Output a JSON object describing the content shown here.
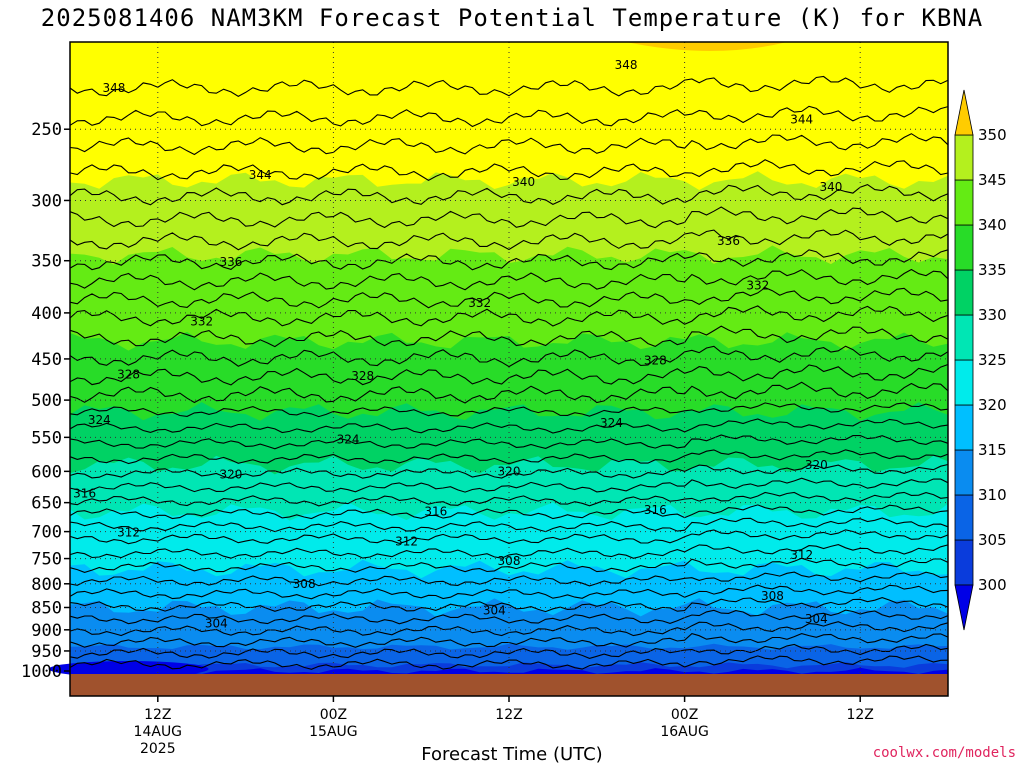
{
  "title": "2025081406 NAM3KM Forecast Potential Temperature (K) for KBNA",
  "xlabel": "Forecast Time (UTC)",
  "credit": "coolwx.com/models",
  "chart_data": {
    "type": "heatmap",
    "title": "2025081406 NAM3KM Forecast Potential Temperature (K) for KBNA",
    "xlabel": "Forecast Time (UTC)",
    "ylabel": "",
    "y_ticks": [
      250,
      300,
      350,
      400,
      450,
      500,
      550,
      600,
      650,
      700,
      750,
      800,
      850,
      900,
      950,
      1000
    ],
    "x_ticks": [
      {
        "hour": 12,
        "label": "12Z",
        "sub1": "14AUG",
        "sub2": "2025"
      },
      {
        "hour": 24,
        "label": "00Z",
        "sub1": "15AUG",
        "sub2": ""
      },
      {
        "hour": 36,
        "label": "12Z",
        "sub1": "",
        "sub2": ""
      },
      {
        "hour": 48,
        "label": "00Z",
        "sub1": "16AUG",
        "sub2": ""
      },
      {
        "hour": 60,
        "label": "12Z",
        "sub1": "",
        "sub2": ""
      }
    ],
    "xlim_hours": [
      6,
      66
    ],
    "ylim_hpa": [
      1010,
      200
    ],
    "grid": true,
    "colorbar": {
      "levels": [
        300,
        305,
        310,
        315,
        320,
        325,
        330,
        335,
        340,
        345,
        350
      ],
      "colors": [
        "#0000e6",
        "#0a3cdc",
        "#0a64e6",
        "#0a8cf0",
        "#00bfff",
        "#00ebeb",
        "#00e6b4",
        "#00d264",
        "#28dc28",
        "#64eb14",
        "#b4f01e",
        "#ffff00",
        "#ffcc00"
      ]
    },
    "contour_labels": [
      {
        "value": "348",
        "hour": 9,
        "hpa": 225
      },
      {
        "value": "348",
        "hour": 44,
        "hpa": 212
      },
      {
        "value": "344",
        "hour": 19,
        "hpa": 281
      },
      {
        "value": "344",
        "hour": 56,
        "hpa": 244
      },
      {
        "value": "340",
        "hour": 37,
        "hpa": 286
      },
      {
        "value": "340",
        "hour": 58,
        "hpa": 290
      },
      {
        "value": "336",
        "hour": 17,
        "hpa": 351
      },
      {
        "value": "336",
        "hour": 51,
        "hpa": 333
      },
      {
        "value": "332",
        "hour": 15,
        "hpa": 409
      },
      {
        "value": "332",
        "hour": 34,
        "hpa": 390
      },
      {
        "value": "332",
        "hour": 53,
        "hpa": 373
      },
      {
        "value": "328",
        "hour": 10,
        "hpa": 468
      },
      {
        "value": "328",
        "hour": 26,
        "hpa": 470
      },
      {
        "value": "328",
        "hour": 46,
        "hpa": 452
      },
      {
        "value": "324",
        "hour": 8,
        "hpa": 526
      },
      {
        "value": "324",
        "hour": 25,
        "hpa": 553
      },
      {
        "value": "324",
        "hour": 43,
        "hpa": 530
      },
      {
        "value": "320",
        "hour": 17,
        "hpa": 605
      },
      {
        "value": "320",
        "hour": 36,
        "hpa": 600
      },
      {
        "value": "320",
        "hour": 57,
        "hpa": 590
      },
      {
        "value": "316",
        "hour": 7,
        "hpa": 635
      },
      {
        "value": "316",
        "hour": 31,
        "hpa": 665
      },
      {
        "value": "316",
        "hour": 46,
        "hpa": 662
      },
      {
        "value": "312",
        "hour": 10,
        "hpa": 702
      },
      {
        "value": "312",
        "hour": 29,
        "hpa": 718
      },
      {
        "value": "312",
        "hour": 56,
        "hpa": 743
      },
      {
        "value": "308",
        "hour": 22,
        "hpa": 800
      },
      {
        "value": "308",
        "hour": 36,
        "hpa": 755
      },
      {
        "value": "308",
        "hour": 54,
        "hpa": 825
      },
      {
        "value": "304",
        "hour": 16,
        "hpa": 885
      },
      {
        "value": "304",
        "hour": 35,
        "hpa": 857
      },
      {
        "value": "304",
        "hour": 57,
        "hpa": 875
      }
    ]
  }
}
